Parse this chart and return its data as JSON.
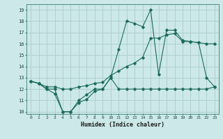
{
  "title": "",
  "xlabel": "Humidex (Indice chaleur)",
  "ylabel": "",
  "bg_color": "#cce8e8",
  "grid_color": "#aacccc",
  "line_color": "#1a6b5a",
  "xlim": [
    -0.5,
    23.5
  ],
  "ylim": [
    9.8,
    19.5
  ],
  "yticks": [
    10,
    11,
    12,
    13,
    14,
    15,
    16,
    17,
    18,
    19
  ],
  "xticks": [
    0,
    1,
    2,
    3,
    4,
    5,
    6,
    7,
    8,
    9,
    10,
    11,
    12,
    13,
    14,
    15,
    16,
    17,
    18,
    19,
    20,
    21,
    22,
    23
  ],
  "line1_x": [
    0,
    1,
    2,
    3,
    4,
    5,
    6,
    7,
    8,
    9,
    10,
    11,
    12,
    13,
    14,
    15,
    16,
    17,
    18,
    19,
    20,
    21,
    22,
    23
  ],
  "line1_y": [
    12.7,
    12.5,
    12.0,
    11.6,
    10.0,
    10.0,
    10.8,
    11.1,
    11.8,
    12.0,
    13.0,
    12.0,
    12.0,
    12.0,
    12.0,
    12.0,
    12.0,
    12.0,
    12.0,
    12.0,
    12.0,
    12.0,
    12.0,
    12.2
  ],
  "line2_x": [
    0,
    1,
    2,
    3,
    4,
    5,
    6,
    7,
    8,
    9,
    10,
    11,
    12,
    13,
    14,
    15,
    16,
    17,
    18,
    19,
    20,
    21,
    22,
    23
  ],
  "line2_y": [
    12.7,
    12.5,
    12.0,
    12.0,
    10.0,
    10.0,
    11.0,
    11.5,
    12.0,
    12.0,
    13.0,
    15.5,
    18.0,
    17.8,
    17.5,
    19.0,
    13.3,
    17.2,
    17.2,
    16.3,
    16.2,
    16.1,
    13.0,
    12.2
  ],
  "line3_x": [
    0,
    1,
    2,
    3,
    4,
    5,
    6,
    7,
    8,
    9,
    10,
    11,
    12,
    13,
    14,
    15,
    16,
    17,
    18,
    19,
    20,
    21,
    22,
    23
  ],
  "line3_y": [
    12.7,
    12.5,
    12.2,
    12.2,
    12.0,
    12.0,
    12.2,
    12.3,
    12.5,
    12.6,
    13.2,
    13.6,
    14.0,
    14.3,
    14.8,
    16.5,
    16.5,
    16.8,
    16.9,
    16.2,
    16.2,
    16.1,
    16.0,
    16.0
  ]
}
